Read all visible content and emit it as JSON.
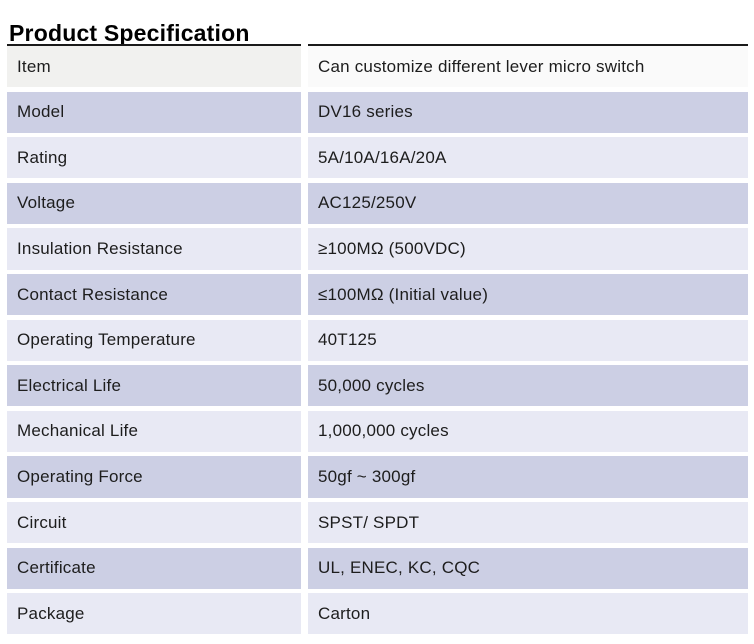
{
  "title": "Product Specification",
  "colors": {
    "header_label_bg": "#f1f1ef",
    "header_value_bg": "#fafafa",
    "row_alt_bg": "#cccfe4",
    "row_bg": "#e8e9f4",
    "top_border": "#1a1a1a",
    "text": "#1d1d1d"
  },
  "table": {
    "rows": [
      {
        "label": "Item",
        "value": "Can customize different lever micro switch"
      },
      {
        "label": "Model",
        "value": "DV16 series"
      },
      {
        "label": "Rating",
        "value": "5A/10A/16A/20A"
      },
      {
        "label": "Voltage",
        "value": "AC125/250V"
      },
      {
        "label": "Insulation Resistance",
        "value": "≥100MΩ (500VDC)"
      },
      {
        "label": "Contact Resistance",
        "value": "≤100MΩ (Initial value)"
      },
      {
        "label": "Operating Temperature",
        "value": "40T125"
      },
      {
        "label": "Electrical Life",
        "value": "50,000 cycles"
      },
      {
        "label": "Mechanical Life",
        "value": "1,000,000 cycles"
      },
      {
        "label": "Operating Force",
        "value": "50gf ~  300gf"
      },
      {
        "label": "Circuit",
        "value": "SPST/ SPDT"
      },
      {
        "label": "Certificate",
        "value": "UL, ENEC, KC, CQC"
      },
      {
        "label": "Package",
        "value": "Carton"
      }
    ]
  }
}
